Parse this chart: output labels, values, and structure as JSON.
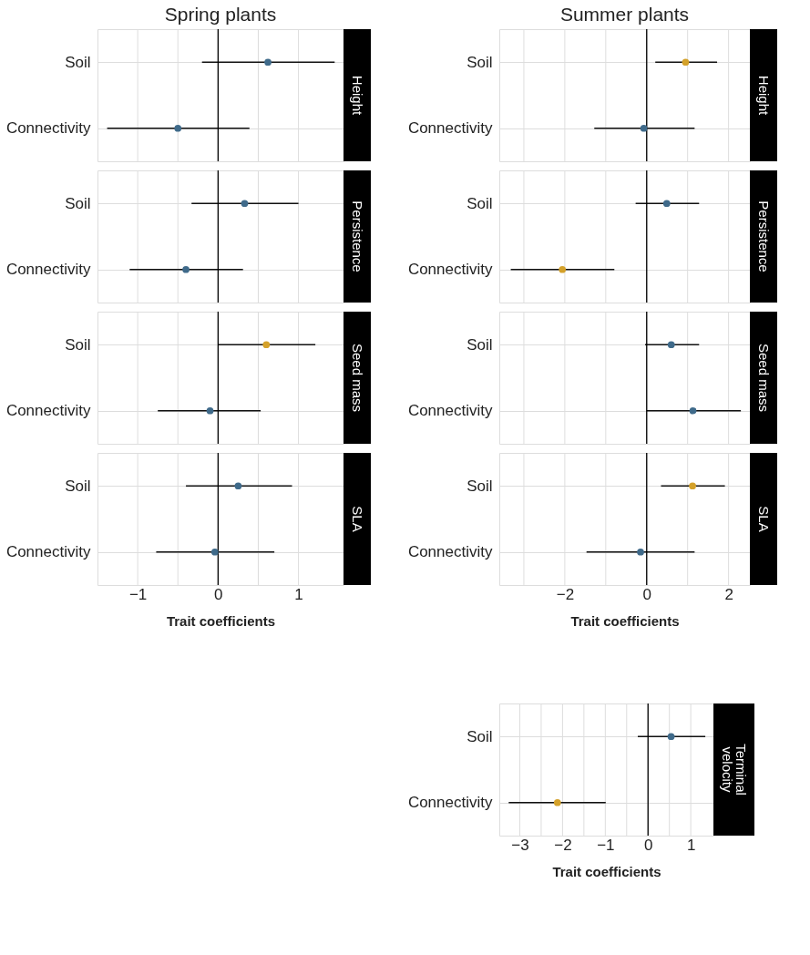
{
  "chart_data": [
    {
      "type": "scatter",
      "orientation": "horizontal",
      "title": "Spring plants",
      "y2label": "Height",
      "categories": [
        "Soil",
        "Connectivity"
      ],
      "values": [
        0.62,
        -0.5
      ],
      "errors": [
        [
          -0.2,
          1.45
        ],
        [
          -1.38,
          0.39
        ]
      ],
      "colors": [
        "#3f6a8a",
        "#3f6a8a"
      ],
      "xlim": [
        -1.5,
        1.56
      ],
      "xticks": [
        -1,
        {
          "value": -0.5,
          "label": null
        },
        0,
        {
          "value": 0.5,
          "label": null
        },
        1
      ],
      "grid": true,
      "marker": "circle",
      "tick_labels": "y",
      "ref_lines": [
        {
          "axis": "x",
          "value": 0,
          "color": "#000000"
        }
      ]
    },
    {
      "type": "scatter",
      "orientation": "horizontal",
      "title": "Summer plants",
      "y2label": "Height",
      "categories": [
        "Soil",
        "Connectivity"
      ],
      "values": [
        0.95,
        -0.07
      ],
      "errors": [
        [
          0.21,
          1.72
        ],
        [
          -1.28,
          1.17
        ]
      ],
      "colors": [
        "#d4a12a",
        "#3f6a8a"
      ],
      "xlim": [
        -3.6,
        2.52
      ],
      "xticks": [
        {
          "value": -3,
          "label": null
        },
        -2,
        {
          "value": -1,
          "label": null
        },
        0,
        {
          "value": 1,
          "label": null
        },
        2
      ],
      "grid": true,
      "marker": "circle",
      "tick_labels": "y",
      "ref_lines": [
        {
          "axis": "x",
          "value": 0,
          "color": "#000000"
        }
      ]
    },
    {
      "type": "scatter",
      "orientation": "horizontal",
      "y2label": "Persistence",
      "categories": [
        "Soil",
        "Connectivity"
      ],
      "values": [
        0.33,
        -0.4
      ],
      "errors": [
        [
          -0.33,
          1.0
        ],
        [
          -1.1,
          0.31
        ]
      ],
      "colors": [
        "#3f6a8a",
        "#3f6a8a"
      ],
      "xlim": [
        -1.5,
        1.56
      ],
      "xticks": [
        -1,
        {
          "value": -0.5,
          "label": null
        },
        0,
        {
          "value": 0.5,
          "label": null
        },
        1
      ],
      "grid": true,
      "marker": "circle",
      "tick_labels": "y",
      "ref_lines": [
        {
          "axis": "x",
          "value": 0,
          "color": "#000000"
        }
      ]
    },
    {
      "type": "scatter",
      "orientation": "horizontal",
      "y2label": "Persistence",
      "categories": [
        "Soil",
        "Connectivity"
      ],
      "values": [
        0.49,
        -2.06
      ],
      "errors": [
        [
          -0.27,
          1.28
        ],
        [
          -3.32,
          -0.79
        ]
      ],
      "colors": [
        "#3f6a8a",
        "#d4a12a"
      ],
      "xlim": [
        -3.6,
        2.52
      ],
      "xticks": [
        {
          "value": -3,
          "label": null
        },
        -2,
        {
          "value": -1,
          "label": null
        },
        0,
        {
          "value": 1,
          "label": null
        },
        2
      ],
      "grid": true,
      "marker": "circle",
      "tick_labels": "y",
      "ref_lines": [
        {
          "axis": "x",
          "value": 0,
          "color": "#000000"
        }
      ]
    },
    {
      "type": "scatter",
      "orientation": "horizontal",
      "y2label": "Seed mass",
      "categories": [
        "Soil",
        "Connectivity"
      ],
      "values": [
        0.6,
        -0.1
      ],
      "errors": [
        [
          0.0,
          1.21
        ],
        [
          -0.75,
          0.53
        ]
      ],
      "colors": [
        "#d4a12a",
        "#3f6a8a"
      ],
      "xlim": [
        -1.5,
        1.56
      ],
      "xticks": [
        -1,
        {
          "value": -0.5,
          "label": null
        },
        0,
        {
          "value": 0.5,
          "label": null
        },
        1
      ],
      "grid": true,
      "marker": "circle",
      "tick_labels": "y",
      "ref_lines": [
        {
          "axis": "x",
          "value": 0,
          "color": "#000000"
        }
      ]
    },
    {
      "type": "scatter",
      "orientation": "horizontal",
      "y2label": "Seed mass",
      "categories": [
        "Soil",
        "Connectivity"
      ],
      "values": [
        0.6,
        1.13
      ],
      "errors": [
        [
          -0.04,
          1.28
        ],
        [
          0.0,
          2.3
        ]
      ],
      "colors": [
        "#3f6a8a",
        "#3f6a8a"
      ],
      "xlim": [
        -3.6,
        2.52
      ],
      "xticks": [
        {
          "value": -3,
          "label": null
        },
        -2,
        {
          "value": -1,
          "label": null
        },
        0,
        {
          "value": 1,
          "label": null
        },
        2
      ],
      "grid": true,
      "marker": "circle",
      "tick_labels": "y",
      "ref_lines": [
        {
          "axis": "x",
          "value": 0,
          "color": "#000000"
        }
      ]
    },
    {
      "type": "scatter",
      "orientation": "horizontal",
      "y2label": "SLA",
      "xlabel": "Trait coefficients",
      "categories": [
        "Soil",
        "Connectivity"
      ],
      "values": [
        0.25,
        -0.04
      ],
      "errors": [
        [
          -0.4,
          0.92
        ],
        [
          -0.77,
          0.7
        ]
      ],
      "colors": [
        "#3f6a8a",
        "#3f6a8a"
      ],
      "xlim": [
        -1.5,
        1.56
      ],
      "xticks": [
        -1,
        {
          "value": -0.5,
          "label": null
        },
        0,
        {
          "value": 0.5,
          "label": null
        },
        1
      ],
      "grid": true,
      "marker": "circle",
      "ref_lines": [
        {
          "axis": "x",
          "value": 0,
          "color": "#000000"
        }
      ]
    },
    {
      "type": "scatter",
      "orientation": "horizontal",
      "y2label": "SLA",
      "xlabel": "Trait coefficients",
      "categories": [
        "Soil",
        "Connectivity"
      ],
      "values": [
        1.12,
        -0.15
      ],
      "errors": [
        [
          0.35,
          1.91
        ],
        [
          -1.47,
          1.17
        ]
      ],
      "colors": [
        "#d4a12a",
        "#3f6a8a"
      ],
      "xlim": [
        -3.6,
        2.52
      ],
      "xticks": [
        {
          "value": -3,
          "label": null
        },
        -2,
        {
          "value": -1,
          "label": null
        },
        0,
        {
          "value": 1,
          "label": null
        },
        2
      ],
      "grid": true,
      "marker": "circle",
      "ref_lines": [
        {
          "axis": "x",
          "value": 0,
          "color": "#000000"
        }
      ]
    },
    {
      "type": "scatter",
      "orientation": "horizontal",
      "y2label": "Terminal\nvelocity",
      "xlabel": "Trait coefficients",
      "categories": [
        "Soil",
        "Connectivity"
      ],
      "values": [
        0.54,
        -2.12
      ],
      "errors": [
        [
          -0.24,
          1.34
        ],
        [
          -3.26,
          -0.99
        ]
      ],
      "colors": [
        "#3f6a8a",
        "#d4a12a"
      ],
      "xlim": [
        -3.48,
        1.53
      ],
      "xticks": [
        -3,
        {
          "value": -2.5,
          "label": null
        },
        -2,
        {
          "value": -1.5,
          "label": null
        },
        -1,
        {
          "value": -0.5,
          "label": null
        },
        0,
        {
          "value": 0.5,
          "label": null
        },
        1
      ],
      "grid": true,
      "marker": "circle",
      "ref_lines": [
        {
          "axis": "x",
          "value": 0,
          "color": "#000000"
        }
      ]
    }
  ]
}
